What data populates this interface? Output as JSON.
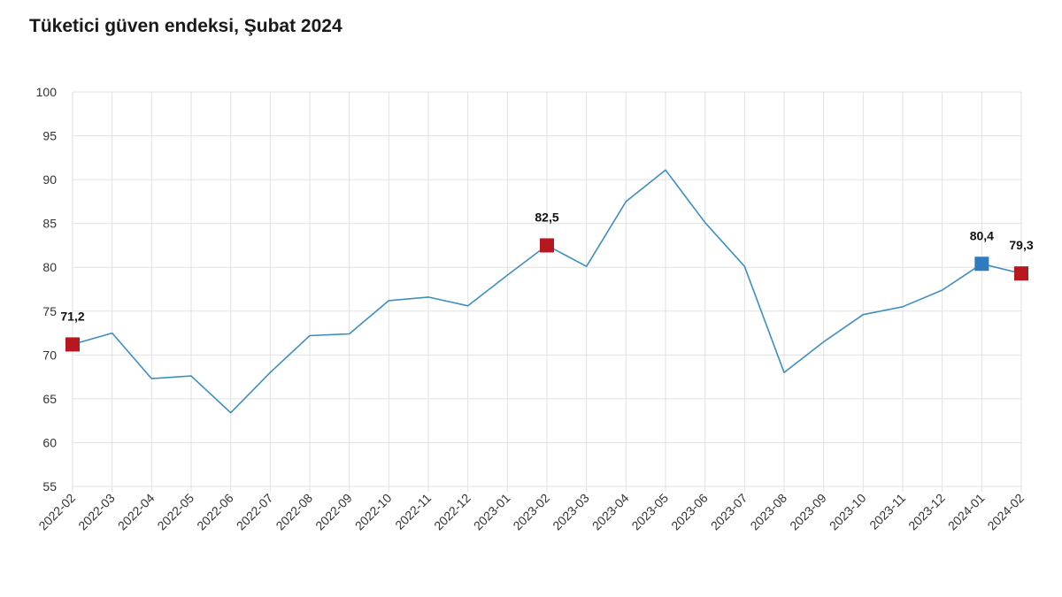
{
  "title": "Tüketici güven endeksi, Şubat 2024",
  "colors": {
    "line": "#3e8ec0",
    "highlight": "#b5181f",
    "last_highlight": "#2f7bbf",
    "grid": "#e2e2e2"
  },
  "chart_data": {
    "type": "line",
    "title": "Tüketici güven endeksi, Şubat 2024",
    "xlabel": "",
    "ylabel": "",
    "ylim": [
      55,
      100
    ],
    "yticks": [
      55,
      60,
      65,
      70,
      75,
      80,
      85,
      90,
      95,
      100
    ],
    "grid": true,
    "categories": [
      "2022-02",
      "2022-03",
      "2022-04",
      "2022-05",
      "2022-06",
      "2022-07",
      "2022-08",
      "2022-09",
      "2022-10",
      "2022-11",
      "2022-12",
      "2023-01",
      "2023-02",
      "2023-03",
      "2023-04",
      "2023-05",
      "2023-06",
      "2023-07",
      "2023-08",
      "2023-09",
      "2023-10",
      "2023-11",
      "2023-12",
      "2024-01",
      "2024-02"
    ],
    "series": [
      {
        "values": [
          71.2,
          72.5,
          67.3,
          67.6,
          63.4,
          68.0,
          72.2,
          72.4,
          76.2,
          76.6,
          75.6,
          79.1,
          82.5,
          80.1,
          87.5,
          91.1,
          85.1,
          80.1,
          68.0,
          71.5,
          74.6,
          75.5,
          77.4,
          80.4,
          79.3
        ]
      }
    ],
    "highlights": [
      {
        "index": 0,
        "label": "71,2",
        "color": "#b5181f"
      },
      {
        "index": 12,
        "label": "82,5",
        "color": "#b5181f"
      },
      {
        "index": 23,
        "label": "80,4",
        "color": "#2f7bbf"
      },
      {
        "index": 24,
        "label": "79,3",
        "color": "#b5181f"
      }
    ]
  }
}
